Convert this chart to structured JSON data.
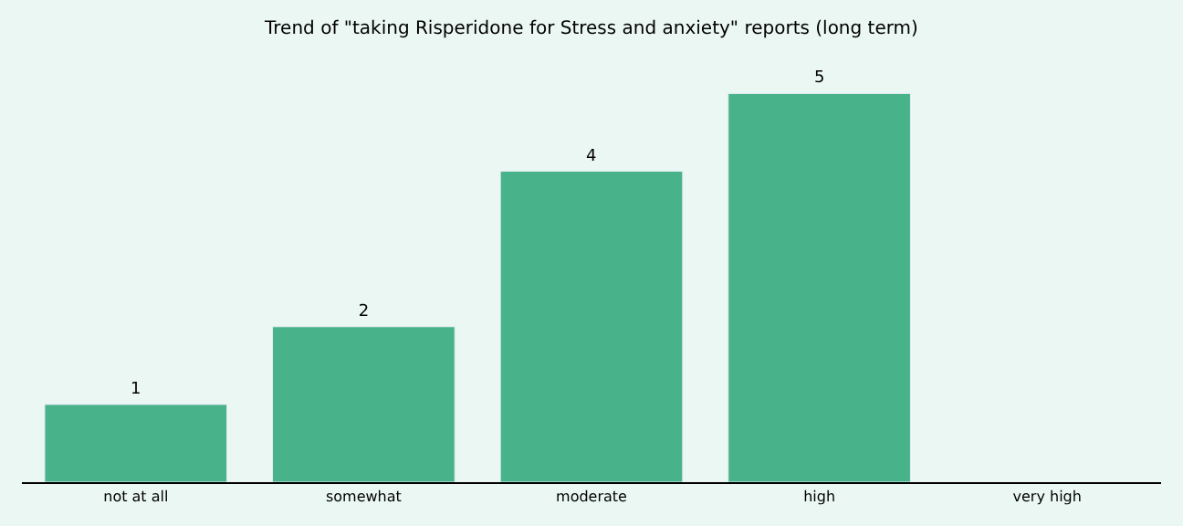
{
  "chart_data": {
    "type": "bar",
    "title": "Trend of \"taking Risperidone for Stress and anxiety\" reports (long term)",
    "categories": [
      "not at all",
      "somewhat",
      "moderate",
      "high",
      "very high"
    ],
    "values": [
      1,
      2,
      4,
      5,
      null
    ],
    "color": "#48b38a",
    "data_labels": true,
    "grid": false,
    "legend": false
  }
}
